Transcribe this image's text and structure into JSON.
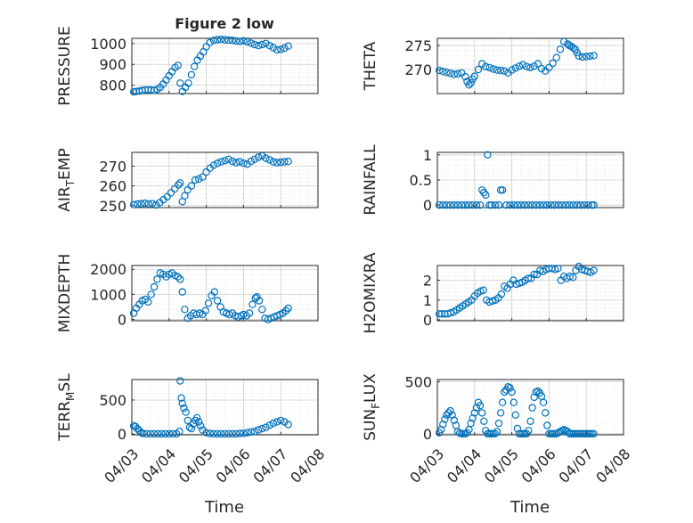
{
  "figure": {
    "title": "Figure 2 low",
    "xlabel": "Time",
    "x_ticks": [
      "04/03",
      "04/04",
      "04/05",
      "04/06",
      "04/07",
      "04/08"
    ],
    "marker_color": "#0072BD"
  },
  "chart_data": [
    {
      "type": "scatter",
      "ylabel": "PRESSURE",
      "ylim": [
        760,
        1025
      ],
      "yticks": [
        800,
        900,
        1000
      ],
      "x": [
        3.05,
        3.12,
        3.2,
        3.28,
        3.36,
        3.44,
        3.52,
        3.6,
        3.68,
        3.76,
        3.84,
        3.92,
        4.0,
        4.08,
        4.16,
        4.24,
        4.3,
        4.36,
        4.44,
        4.52,
        4.6,
        4.68,
        4.76,
        4.84,
        4.92,
        5.0,
        5.1,
        5.2,
        5.3,
        5.4,
        5.5,
        5.6,
        5.7,
        5.8,
        5.9,
        6.0,
        6.1,
        6.2,
        6.3,
        6.4,
        6.5,
        6.6,
        6.7,
        6.8,
        6.9,
        7.0,
        7.1,
        7.2
      ],
      "y": [
        768,
        770,
        772,
        775,
        778,
        778,
        777,
        775,
        780,
        790,
        805,
        825,
        845,
        865,
        885,
        895,
        810,
        770,
        790,
        810,
        850,
        890,
        920,
        940,
        960,
        985,
        1005,
        1015,
        1018,
        1020,
        1018,
        1016,
        1015,
        1012,
        1010,
        1013,
        1008,
        1002,
        995,
        990,
        995,
        1000,
        990,
        980,
        970,
        972,
        978,
        988
      ]
    },
    {
      "type": "scatter",
      "ylabel": "THETA",
      "ylim": [
        265,
        276.5
      ],
      "yticks": [
        270,
        275
      ],
      "x": [
        3.05,
        3.15,
        3.25,
        3.35,
        3.45,
        3.55,
        3.65,
        3.75,
        3.8,
        3.85,
        3.9,
        3.95,
        4.0,
        4.1,
        4.2,
        4.3,
        4.4,
        4.5,
        4.6,
        4.7,
        4.8,
        4.9,
        5.0,
        5.1,
        5.2,
        5.3,
        5.4,
        5.5,
        5.6,
        5.7,
        5.8,
        5.9,
        6.0,
        6.1,
        6.2,
        6.3,
        6.4,
        6.5,
        6.55,
        6.6,
        6.65,
        6.7,
        6.75,
        6.8,
        6.9,
        7.0,
        7.1,
        7.2
      ],
      "y": [
        269.8,
        269.6,
        269.4,
        269.2,
        269.0,
        269.1,
        269.3,
        268.5,
        267.5,
        266.8,
        267.2,
        268,
        268.6,
        270.0,
        271.2,
        270.6,
        270.4,
        270.1,
        269.9,
        269.8,
        269.7,
        269.3,
        269.9,
        270.3,
        270.7,
        271.0,
        270.6,
        270.4,
        270.7,
        271.2,
        270.2,
        269.7,
        270.4,
        271.3,
        272.5,
        274.2,
        275.8,
        275.3,
        275.0,
        274.8,
        274.5,
        274.2,
        273.5,
        272.8,
        272.6,
        272.7,
        272.8,
        272.9
      ]
    },
    {
      "type": "scatter",
      "ylabel": "AIR_TEMP",
      "ylim": [
        249,
        277
      ],
      "yticks": [
        250,
        260,
        270
      ],
      "x": [
        3.05,
        3.15,
        3.25,
        3.35,
        3.45,
        3.55,
        3.65,
        3.75,
        3.85,
        3.95,
        4.05,
        4.15,
        4.25,
        4.3,
        4.36,
        4.42,
        4.5,
        4.6,
        4.7,
        4.8,
        4.9,
        5.0,
        5.1,
        5.2,
        5.3,
        5.4,
        5.5,
        5.6,
        5.7,
        5.8,
        5.9,
        6.0,
        6.1,
        6.2,
        6.3,
        6.4,
        6.5,
        6.6,
        6.7,
        6.8,
        6.9,
        7.0,
        7.1,
        7.2
      ],
      "y": [
        250.5,
        250.8,
        251.0,
        251.2,
        250.9,
        251.0,
        250.3,
        251.5,
        253,
        254.5,
        256.5,
        258.5,
        260.5,
        261.5,
        252,
        255,
        258,
        260,
        263,
        263.5,
        264.5,
        267,
        269,
        270.5,
        271.5,
        272.2,
        272.8,
        273.5,
        272.5,
        271.8,
        272.2,
        271.5,
        271,
        272.5,
        273.5,
        274.5,
        275.2,
        274.0,
        273.2,
        272.2,
        271.8,
        272.0,
        272.2,
        272.4
      ]
    },
    {
      "type": "scatter",
      "ylabel": "RAINFALL",
      "ylim": [
        -0.05,
        1.05
      ],
      "yticks": [
        0,
        0.5,
        1
      ],
      "x": [
        3.05,
        3.15,
        3.25,
        3.35,
        3.45,
        3.55,
        3.65,
        3.75,
        3.85,
        3.95,
        4.05,
        4.15,
        4.2,
        4.25,
        4.3,
        4.35,
        4.4,
        4.45,
        4.55,
        4.65,
        4.7,
        4.75,
        4.85,
        4.95,
        5.05,
        5.15,
        5.25,
        5.35,
        5.45,
        5.55,
        5.65,
        5.75,
        5.85,
        5.95,
        6.05,
        6.15,
        6.25,
        6.35,
        6.45,
        6.55,
        6.65,
        6.75,
        6.85,
        6.95,
        7.05,
        7.15,
        7.2
      ],
      "y": [
        0,
        0,
        0,
        0,
        0,
        0,
        0,
        0,
        0,
        0,
        0,
        0,
        0.3,
        0.25,
        0.2,
        1,
        0,
        0,
        0,
        0,
        0.3,
        0.3,
        0,
        0,
        0,
        0,
        0,
        0,
        0,
        0,
        0,
        0,
        0,
        0,
        0,
        0,
        0,
        0,
        0,
        0,
        0,
        0,
        0,
        0,
        0,
        0,
        0
      ]
    },
    {
      "type": "scatter",
      "ylabel": "MIXDEPTH",
      "ylim": [
        -50,
        2150
      ],
      "yticks": [
        0,
        1000,
        2000
      ],
      "x": [
        3.05,
        3.12,
        3.2,
        3.28,
        3.36,
        3.44,
        3.52,
        3.6,
        3.68,
        3.76,
        3.84,
        3.92,
        4.0,
        4.08,
        4.16,
        4.24,
        4.3,
        4.36,
        4.42,
        4.5,
        4.58,
        4.66,
        4.74,
        4.82,
        4.9,
        4.98,
        5.06,
        5.14,
        5.22,
        5.3,
        5.38,
        5.46,
        5.54,
        5.62,
        5.7,
        5.78,
        5.86,
        5.94,
        6.0,
        6.08,
        6.16,
        6.24,
        6.32,
        6.36,
        6.42,
        6.5,
        6.58,
        6.66,
        6.74,
        6.82,
        6.9,
        6.98,
        7.06,
        7.14,
        7.2
      ],
      "y": [
        250,
        450,
        600,
        750,
        800,
        700,
        1000,
        1300,
        1600,
        1850,
        1800,
        1700,
        1800,
        1850,
        1750,
        1700,
        1600,
        1100,
        400,
        50,
        150,
        250,
        200,
        250,
        200,
        350,
        650,
        950,
        1100,
        750,
        500,
        300,
        250,
        200,
        250,
        150,
        100,
        150,
        200,
        150,
        250,
        600,
        850,
        900,
        750,
        400,
        50,
        0,
        50,
        100,
        150,
        200,
        250,
        350,
        450
      ]
    },
    {
      "type": "scatter",
      "ylabel": "H2OMIXRA",
      "ylim": [
        -0.05,
        2.75
      ],
      "yticks": [
        0,
        1,
        2
      ],
      "x": [
        3.05,
        3.12,
        3.2,
        3.28,
        3.36,
        3.44,
        3.52,
        3.6,
        3.68,
        3.76,
        3.84,
        3.92,
        4.0,
        4.08,
        4.16,
        4.24,
        4.32,
        4.4,
        4.48,
        4.56,
        4.64,
        4.72,
        4.8,
        4.88,
        4.96,
        5.04,
        5.12,
        5.2,
        5.28,
        5.36,
        5.44,
        5.52,
        5.6,
        5.68,
        5.76,
        5.84,
        5.92,
        6.0,
        6.08,
        6.16,
        6.24,
        6.32,
        6.4,
        6.48,
        6.56,
        6.64,
        6.72,
        6.8,
        6.88,
        6.96,
        7.04,
        7.12,
        7.2
      ],
      "y": [
        0.3,
        0.3,
        0.3,
        0.3,
        0.35,
        0.4,
        0.5,
        0.6,
        0.7,
        0.8,
        0.9,
        1.0,
        1.2,
        1.35,
        1.45,
        1.5,
        1.0,
        0.9,
        0.95,
        1.0,
        1.1,
        1.3,
        1.7,
        1.6,
        1.8,
        2.0,
        1.8,
        1.85,
        1.9,
        2.0,
        2.1,
        2.1,
        2.3,
        2.3,
        2.5,
        2.45,
        2.55,
        2.6,
        2.6,
        2.55,
        2.6,
        2.0,
        2.2,
        2.1,
        2.2,
        2.15,
        2.5,
        2.7,
        2.55,
        2.5,
        2.45,
        2.4,
        2.5
      ]
    },
    {
      "type": "scatter",
      "ylabel": "TERR_MSL",
      "ylim": [
        -10,
        800
      ],
      "yticks": [
        0,
        500
      ],
      "x": [
        3.05,
        3.1,
        3.15,
        3.2,
        3.25,
        3.3,
        3.4,
        3.5,
        3.6,
        3.7,
        3.8,
        3.9,
        4.0,
        4.1,
        4.2,
        4.28,
        4.3,
        4.33,
        4.36,
        4.4,
        4.45,
        4.5,
        4.55,
        4.6,
        4.65,
        4.7,
        4.75,
        4.8,
        4.85,
        4.9,
        5.0,
        5.1,
        5.2,
        5.3,
        5.4,
        5.5,
        5.6,
        5.7,
        5.8,
        5.9,
        6.0,
        6.1,
        6.2,
        6.3,
        6.4,
        6.5,
        6.6,
        6.7,
        6.8,
        6.9,
        7.0,
        7.1,
        7.2
      ],
      "y": [
        120,
        110,
        80,
        50,
        20,
        10,
        5,
        5,
        5,
        5,
        5,
        5,
        5,
        5,
        5,
        40,
        780,
        530,
        450,
        380,
        320,
        200,
        100,
        80,
        150,
        200,
        240,
        180,
        120,
        60,
        20,
        10,
        5,
        5,
        5,
        5,
        5,
        5,
        5,
        10,
        10,
        20,
        30,
        40,
        60,
        80,
        100,
        130,
        160,
        180,
        200,
        180,
        140
      ]
    },
    {
      "type": "scatter",
      "ylabel": "SUN_FLUX",
      "ylim": [
        -10,
        520
      ],
      "yticks": [
        0,
        500
      ],
      "x": [
        3.05,
        3.1,
        3.15,
        3.2,
        3.25,
        3.3,
        3.35,
        3.4,
        3.45,
        3.5,
        3.55,
        3.6,
        3.65,
        3.7,
        3.75,
        3.8,
        3.85,
        3.9,
        3.95,
        4.0,
        4.05,
        4.1,
        4.15,
        4.2,
        4.25,
        4.3,
        4.35,
        4.4,
        4.45,
        4.5,
        4.55,
        4.6,
        4.65,
        4.7,
        4.75,
        4.8,
        4.85,
        4.9,
        4.95,
        5.0,
        5.05,
        5.1,
        5.15,
        5.2,
        5.25,
        5.3,
        5.35,
        5.4,
        5.45,
        5.5,
        5.55,
        5.6,
        5.65,
        5.7,
        5.75,
        5.8,
        5.85,
        5.9,
        5.95,
        6.0,
        6.05,
        6.1,
        6.15,
        6.2,
        6.25,
        6.3,
        6.35,
        6.4,
        6.45,
        6.5,
        6.55,
        6.6,
        6.65,
        6.7,
        6.75,
        6.8,
        6.85,
        6.9,
        6.95,
        7.0,
        7.05,
        7.1,
        7.15,
        7.2
      ],
      "y": [
        10,
        40,
        90,
        140,
        180,
        200,
        220,
        180,
        130,
        80,
        20,
        5,
        0,
        0,
        0,
        10,
        40,
        100,
        150,
        200,
        250,
        300,
        270,
        200,
        120,
        30,
        0,
        0,
        0,
        0,
        0,
        20,
        100,
        200,
        300,
        400,
        420,
        450,
        440,
        400,
        300,
        180,
        50,
        0,
        0,
        0,
        0,
        0,
        30,
        120,
        250,
        350,
        400,
        410,
        390,
        360,
        300,
        200,
        80,
        0,
        0,
        0,
        0,
        0,
        10,
        20,
        30,
        40,
        30,
        20,
        0,
        0,
        0,
        0,
        0,
        0,
        0,
        0,
        0,
        0,
        0,
        0,
        0,
        0
      ]
    }
  ]
}
